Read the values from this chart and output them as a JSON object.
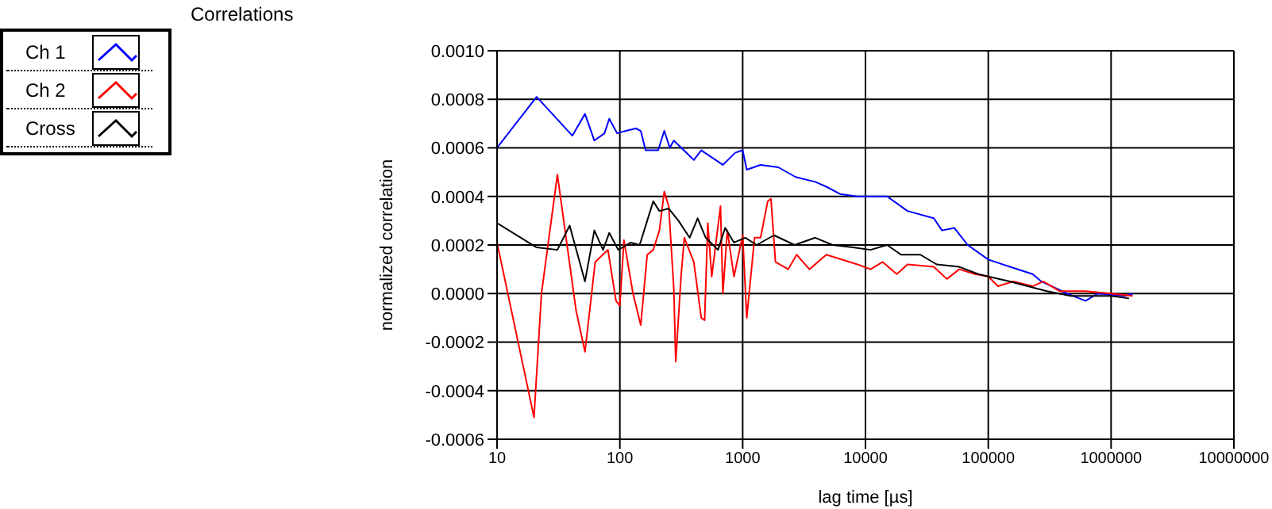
{
  "chart_data": {
    "type": "line",
    "title": "Correlations",
    "xlabel": "lag time [µs]",
    "ylabel": "normalized correlation",
    "log": "x",
    "grid": true,
    "legend": "top left",
    "marker": "none",
    "line_style": "solid",
    "xlim": [
      10,
      10000000
    ],
    "xticks": [
      10,
      100,
      1000,
      10000,
      100000,
      1000000,
      10000000
    ],
    "ylim": [
      -0.0006,
      0.001
    ],
    "yticks": [
      {
        "value": -0.0006,
        "label": "-0.0006"
      },
      {
        "value": -0.0004,
        "label": "-0.0004"
      },
      {
        "value": -0.0002,
        "label": "-0.0002"
      },
      {
        "value": 0,
        "label": "0.0000"
      },
      {
        "value": 0.0002,
        "label": "0.0002"
      },
      {
        "value": 0.0004,
        "label": "0.0004"
      },
      {
        "value": 0.0006,
        "label": "0.0006"
      },
      {
        "value": 0.0008,
        "label": "0.0008"
      },
      {
        "value": 0.001,
        "label": "0.0010"
      }
    ],
    "series": [
      {
        "name": "Ch 1",
        "color": "#0000ff",
        "x": [
          10,
          21,
          41,
          52,
          62,
          75,
          82,
          95,
          112,
          135,
          148,
          162,
          205,
          230,
          255,
          275,
          400,
          460,
          690,
          870,
          1000,
          1080,
          1400,
          1950,
          2700,
          3900,
          4800,
          6200,
          8600,
          15000,
          22000,
          36000,
          42000,
          53000,
          68000,
          100000,
          150000,
          230000,
          270000,
          440000,
          490000,
          620000,
          780000,
          1300000,
          1500000
        ],
        "values": [
          0.0006,
          0.00081,
          0.00065,
          0.00074,
          0.00063,
          0.00066,
          0.00072,
          0.00066,
          0.00067,
          0.00068,
          0.00067,
          0.00059,
          0.00059,
          0.00067,
          0.0006,
          0.00063,
          0.00055,
          0.00059,
          0.00053,
          0.00058,
          0.00059,
          0.00051,
          0.00053,
          0.00052,
          0.00048,
          0.00046,
          0.00044,
          0.00041,
          0.0004,
          0.0004,
          0.00034,
          0.00031,
          0.00026,
          0.00027,
          0.0002,
          0.00014,
          0.00011,
          8e-05,
          5e-05,
          0,
          -1e-05,
          -3e-05,
          0,
          -1e-05,
          0
        ]
      },
      {
        "name": "Ch 2",
        "color": "#ff0000",
        "x": [
          10,
          20,
          23,
          31,
          44,
          52,
          63,
          80,
          93,
          100,
          108,
          128,
          148,
          167,
          187,
          210,
          230,
          250,
          275,
          285,
          315,
          335,
          400,
          460,
          490,
          520,
          560,
          660,
          690,
          750,
          850,
          1000,
          1080,
          1250,
          1400,
          1600,
          1700,
          1850,
          2350,
          2750,
          3500,
          4800,
          8600,
          11000,
          13800,
          18000,
          22000,
          36000,
          46000,
          58000,
          78000,
          100000,
          120000,
          160000,
          230000,
          280000,
          380000,
          620000,
          1000000,
          1500000
        ],
        "values": [
          0.00021,
          -0.00051,
          0,
          0.00049,
          -7e-05,
          -0.00024,
          0.00013,
          0.00018,
          -3e-05,
          -5e-05,
          0.00022,
          0,
          -0.00013,
          0.00016,
          0.00018,
          0.00026,
          0.00042,
          0.00036,
          2e-05,
          -0.00028,
          7e-05,
          0.00023,
          0.00013,
          -0.0001,
          -0.00011,
          0.00029,
          7e-05,
          0.00036,
          0,
          0.00026,
          7e-05,
          0.00024,
          -0.0001,
          0.00023,
          0.00023,
          0.00038,
          0.00039,
          0.00013,
          0.0001,
          0.00016,
          0.0001,
          0.00016,
          0.00012,
          0.0001,
          0.00013,
          8e-05,
          0.00012,
          0.00011,
          6e-05,
          0.0001,
          8e-05,
          7e-05,
          3e-05,
          5e-05,
          3e-05,
          5e-05,
          1e-05,
          1e-05,
          0,
          -1e-05
        ]
      },
      {
        "name": "Cross",
        "color": "#000000",
        "x": [
          10,
          21,
          31,
          39,
          52,
          62,
          73,
          82,
          97,
          123,
          145,
          187,
          210,
          250,
          300,
          370,
          430,
          500,
          630,
          720,
          850,
          1050,
          1300,
          1800,
          2650,
          3900,
          5400,
          7900,
          11000,
          15000,
          19500,
          28000,
          38000,
          58000,
          83000,
          100000,
          150000,
          210000,
          300000,
          470000,
          1000000,
          1400000
        ],
        "values": [
          0.00029,
          0.00019,
          0.00018,
          0.00028,
          5e-05,
          0.00026,
          0.00018,
          0.00025,
          0.00018,
          0.00021,
          0.0002,
          0.00038,
          0.00034,
          0.00035,
          0.0003,
          0.00023,
          0.00031,
          0.00023,
          0.00018,
          0.00027,
          0.00021,
          0.00023,
          0.0002,
          0.00024,
          0.0002,
          0.00023,
          0.0002,
          0.00019,
          0.00018,
          0.0002,
          0.00016,
          0.00016,
          0.00012,
          0.00011,
          8e-05,
          7e-05,
          5e-05,
          3e-05,
          1e-05,
          -1e-05,
          -1e-05,
          -2e-05
        ]
      }
    ]
  }
}
